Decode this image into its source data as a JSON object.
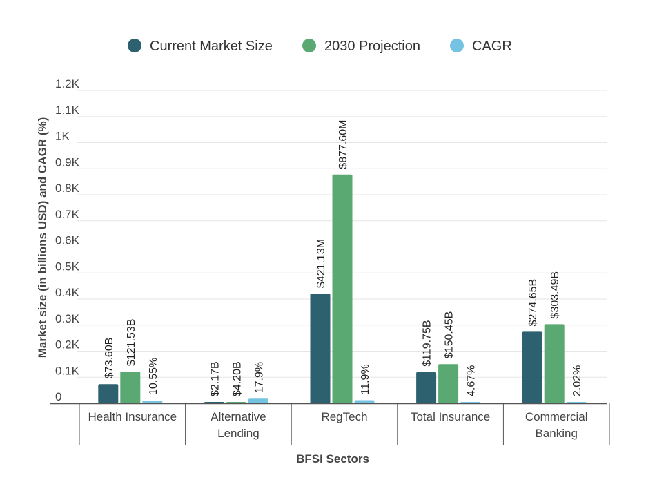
{
  "chart_data": {
    "type": "bar",
    "title": "",
    "xlabel": "BFSI Sectors",
    "ylabel": "Market size (in billions USD) and CAGR (%)",
    "ylim": [
      0,
      1200
    ],
    "yticks": [
      {
        "value": 0,
        "label": "0"
      },
      {
        "value": 100,
        "label": "0.1K"
      },
      {
        "value": 200,
        "label": "0.2K"
      },
      {
        "value": 300,
        "label": "0.3K"
      },
      {
        "value": 400,
        "label": "0.4K"
      },
      {
        "value": 500,
        "label": "0.5K"
      },
      {
        "value": 600,
        "label": "0.6K"
      },
      {
        "value": 700,
        "label": "0.7K"
      },
      {
        "value": 800,
        "label": "0.8K"
      },
      {
        "value": 900,
        "label": "0.9K"
      },
      {
        "value": 1000,
        "label": "1K"
      },
      {
        "value": 1100,
        "label": "1.1K"
      },
      {
        "value": 1200,
        "label": "1.2K"
      }
    ],
    "grid": true,
    "legend_position": "top-center",
    "categories": [
      [
        "Health Insurance"
      ],
      [
        "Alternative",
        "Lending"
      ],
      [
        "RegTech"
      ],
      [
        "Total Insurance"
      ],
      [
        "Commercial",
        "Banking"
      ]
    ],
    "series": [
      {
        "name": "Current Market Size",
        "color": "#2e6170",
        "values": [
          73.6,
          2.17,
          421.13,
          119.75,
          274.65
        ],
        "labels": [
          "$73.60B",
          "$2.17B",
          "$421.13M",
          "$119.75B",
          "$274.65B"
        ]
      },
      {
        "name": "2030 Projection",
        "color": "#5aa872",
        "values": [
          121.53,
          4.2,
          877.6,
          150.45,
          303.49
        ],
        "labels": [
          "$121.53B",
          "$4.20B",
          "$877.60M",
          "$150.45B",
          "$303.49B"
        ]
      },
      {
        "name": "CAGR",
        "color": "#74c3e2",
        "values": [
          10.55,
          17.9,
          11.9,
          4.67,
          2.02
        ],
        "labels": [
          "10.55%",
          "17.9%",
          "11.9%",
          "4.67%",
          "2.02%"
        ]
      }
    ]
  }
}
